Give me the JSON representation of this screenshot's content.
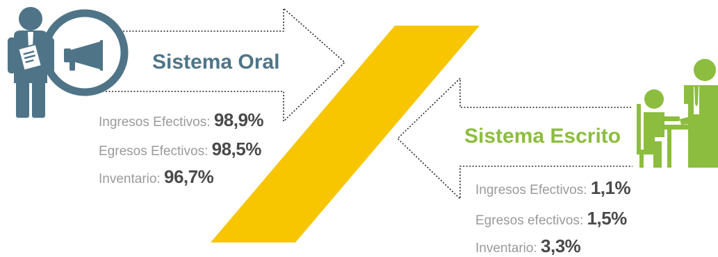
{
  "colors": {
    "oral": "#4f7487",
    "escrito": "#8cbd3f",
    "slash": "#f7c600",
    "label_gray": "#9a9a9a",
    "value_dark": "#4a4a4a"
  },
  "oral": {
    "title": "Sistema Oral",
    "icons": [
      "person-with-document-icon",
      "megaphone-icon"
    ],
    "stats": [
      {
        "label": "Ingresos Efectivos:",
        "value": "98,9%"
      },
      {
        "label": "Egresos Efectivos:",
        "value": "98,5%"
      },
      {
        "label": "Inventario:",
        "value": "96,7%"
      }
    ]
  },
  "escrito": {
    "title": "Sistema Escrito",
    "icons": [
      "people-at-desk-icon"
    ],
    "stats": [
      {
        "label": "Ingresos Efectivos:",
        "value": "1,1%"
      },
      {
        "label": "Egresos efectivos:",
        "value": "1,5%"
      },
      {
        "label": "Inventario:",
        "value": "3,3%"
      }
    ]
  }
}
